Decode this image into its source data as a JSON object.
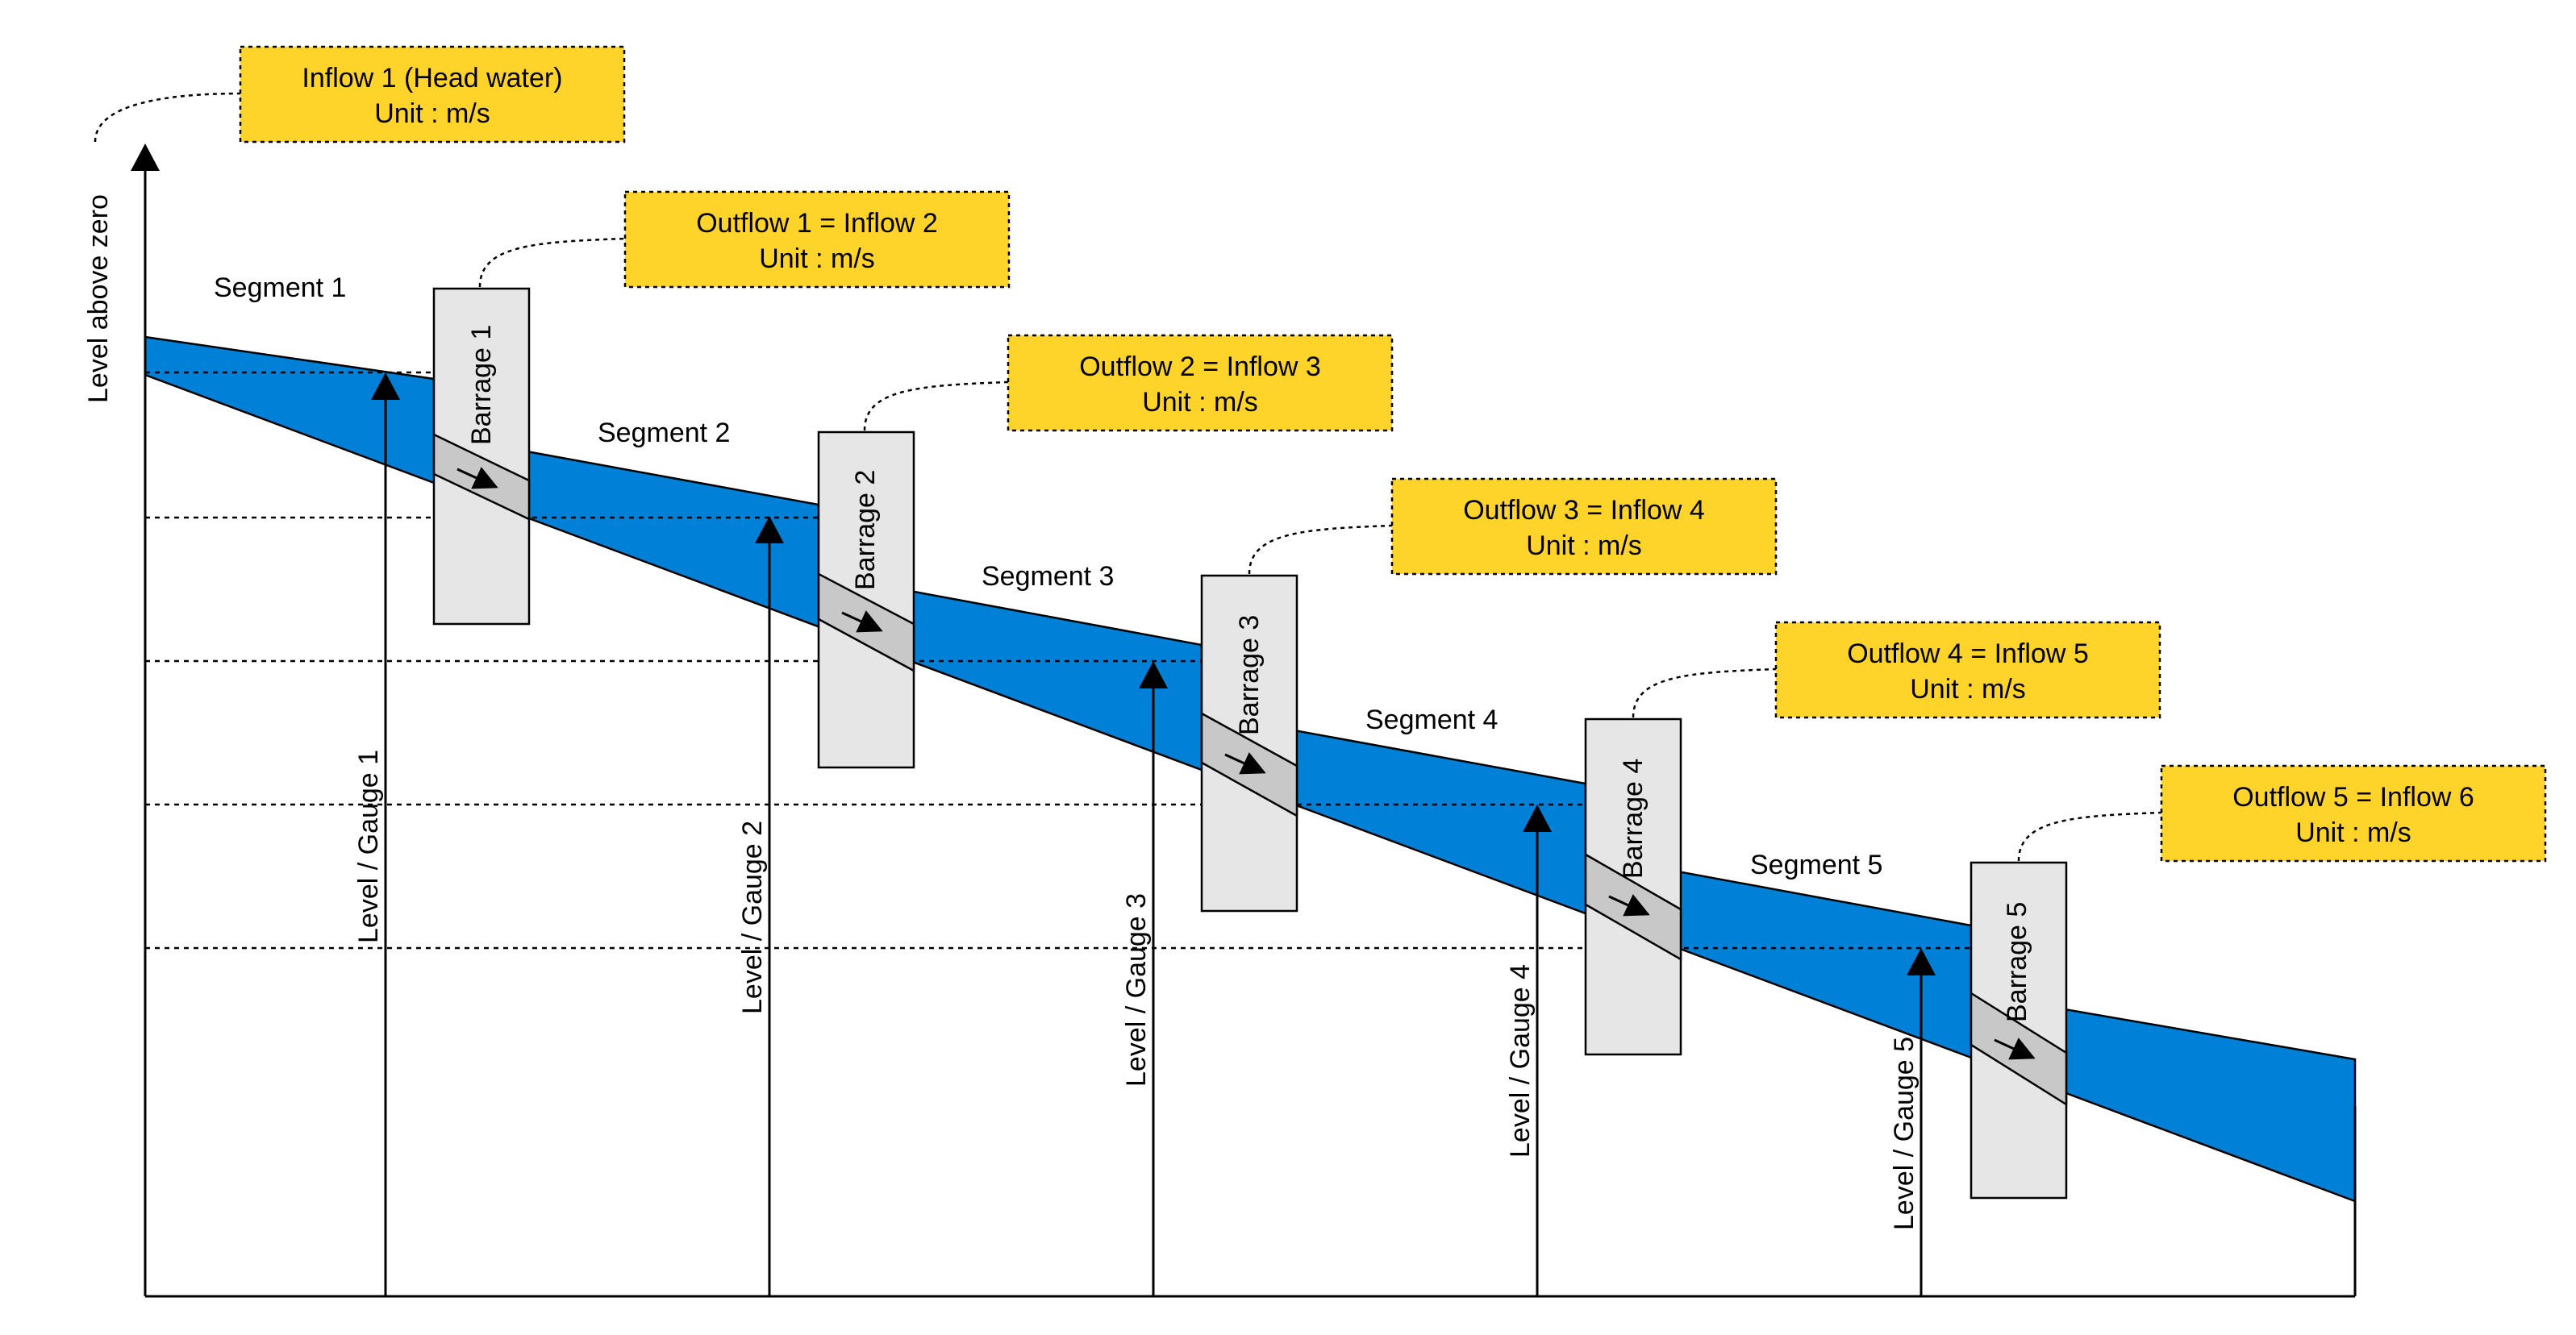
{
  "axis": {
    "ylabel": "Level above zero"
  },
  "inflow_head": {
    "line1": "Inflow 1 (Head water)",
    "line2": "Unit : m/s"
  },
  "segments": [
    "Segment 1",
    "Segment 2",
    "Segment 3",
    "Segment 4",
    "Segment 5"
  ],
  "barrages": [
    "Barrage 1",
    "Barrage 2",
    "Barrage 3",
    "Barrage 4",
    "Barrage 5"
  ],
  "gauges": [
    "Level / Gauge 1",
    "Level / Gauge 2",
    "Level / Gauge 3",
    "Level / Gauge 4",
    "Level / Gauge 5"
  ],
  "outflows": [
    {
      "line1": "Outflow 1 = Inflow 2",
      "line2": "Unit : m/s"
    },
    {
      "line1": "Outflow 2 = Inflow 3",
      "line2": "Unit : m/s"
    },
    {
      "line1": "Outflow 3 = Inflow 4",
      "line2": "Unit : m/s"
    },
    {
      "line1": "Outflow 4 = Inflow 5",
      "line2": "Unit : m/s"
    },
    {
      "line1": "Outflow 5 = Inflow 6",
      "line2": "Unit : m/s"
    }
  ],
  "colors": {
    "water": "#0080d6",
    "note_fill": "#ffd42a",
    "barrage_fill": "#e6e6e6",
    "line": "#000000"
  }
}
